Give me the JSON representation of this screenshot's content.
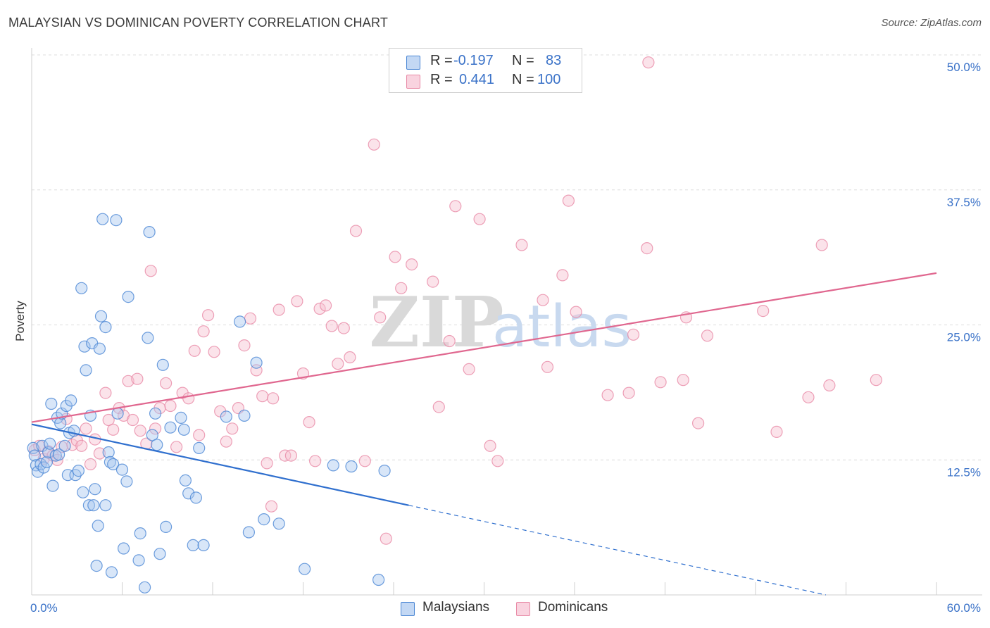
{
  "title": "MALAYSIAN VS DOMINICAN POVERTY CORRELATION CHART",
  "source": "Source: ZipAtlas.com",
  "watermark": {
    "zip": "ZIP",
    "atlas": "atlas"
  },
  "legend": {
    "rows": [
      {
        "r_label": "R =",
        "r_value": "-0.197",
        "n_label": "N =",
        "n_value": "83"
      },
      {
        "r_label": "R =",
        "r_value": "0.441",
        "n_label": "N =",
        "n_value": "100"
      }
    ]
  },
  "bottom_legend": {
    "malaysians": "Malaysians",
    "dominicans": "Dominicans"
  },
  "colors": {
    "blue": "#4a86d4",
    "blue_fill": "#a9c8f0",
    "blue_line": "#2f6fce",
    "pink": "#e88aa6",
    "pink_fill": "#f6c1d1",
    "pink_line": "#e0678f",
    "axis_label": "#3a72c8"
  },
  "chart_data": {
    "type": "scatter",
    "xlabel": "",
    "ylabel": "Poverty",
    "xlim": [
      0,
      60
    ],
    "ylim": [
      0,
      50
    ],
    "x_tick_labels": [
      "0.0%",
      "60.0%"
    ],
    "y_tick_labels": [
      "12.5%",
      "25.0%",
      "37.5%",
      "50.0%"
    ],
    "y_ticks": [
      12.5,
      25,
      37.5,
      50
    ],
    "series": [
      {
        "name": "Malaysians",
        "trend": {
          "x0": 0,
          "y0": 15.8,
          "x1": 25,
          "y1": 8.3,
          "dashed_to_x": 60
        },
        "points": [
          [
            0.1,
            13.6
          ],
          [
            0.2,
            12.9
          ],
          [
            0.3,
            12.0
          ],
          [
            0.4,
            11.4
          ],
          [
            0.6,
            12.1
          ],
          [
            0.7,
            13.8
          ],
          [
            0.8,
            11.8
          ],
          [
            1.0,
            12.3
          ],
          [
            1.1,
            13.2
          ],
          [
            1.2,
            14.0
          ],
          [
            1.3,
            17.7
          ],
          [
            1.4,
            10.1
          ],
          [
            1.6,
            12.9
          ],
          [
            1.7,
            16.4
          ],
          [
            1.8,
            13.0
          ],
          [
            1.9,
            15.9
          ],
          [
            2.0,
            16.8
          ],
          [
            2.2,
            13.8
          ],
          [
            2.3,
            17.5
          ],
          [
            2.4,
            11.1
          ],
          [
            2.5,
            15.0
          ],
          [
            2.6,
            18.0
          ],
          [
            2.8,
            15.2
          ],
          [
            2.9,
            11.1
          ],
          [
            3.1,
            11.5
          ],
          [
            3.3,
            28.4
          ],
          [
            3.4,
            9.5
          ],
          [
            3.5,
            23.0
          ],
          [
            3.6,
            20.8
          ],
          [
            3.8,
            8.3
          ],
          [
            3.9,
            16.6
          ],
          [
            4.0,
            23.3
          ],
          [
            4.1,
            8.3
          ],
          [
            4.2,
            9.8
          ],
          [
            4.3,
            2.7
          ],
          [
            4.4,
            6.4
          ],
          [
            4.5,
            22.8
          ],
          [
            4.6,
            25.8
          ],
          [
            4.7,
            34.8
          ],
          [
            4.9,
            24.8
          ],
          [
            4.9,
            8.3
          ],
          [
            5.1,
            13.2
          ],
          [
            5.2,
            12.3
          ],
          [
            5.3,
            2.1
          ],
          [
            5.4,
            12.1
          ],
          [
            5.6,
            34.7
          ],
          [
            5.7,
            16.8
          ],
          [
            6.0,
            11.6
          ],
          [
            6.1,
            4.3
          ],
          [
            6.3,
            10.5
          ],
          [
            6.4,
            27.6
          ],
          [
            7.1,
            3.2
          ],
          [
            7.2,
            5.7
          ],
          [
            7.5,
            0.7
          ],
          [
            7.7,
            23.8
          ],
          [
            7.8,
            33.6
          ],
          [
            8.0,
            14.8
          ],
          [
            8.2,
            16.8
          ],
          [
            8.3,
            13.9
          ],
          [
            8.5,
            3.8
          ],
          [
            8.7,
            21.3
          ],
          [
            8.9,
            6.3
          ],
          [
            9.2,
            15.5
          ],
          [
            9.9,
            16.4
          ],
          [
            10.1,
            15.3
          ],
          [
            10.2,
            10.6
          ],
          [
            10.4,
            9.4
          ],
          [
            10.7,
            4.6
          ],
          [
            10.9,
            9.0
          ],
          [
            11.1,
            13.6
          ],
          [
            11.4,
            4.6
          ],
          [
            12.9,
            16.5
          ],
          [
            13.8,
            25.3
          ],
          [
            14.1,
            16.6
          ],
          [
            14.4,
            5.8
          ],
          [
            14.9,
            21.5
          ],
          [
            15.4,
            7.0
          ],
          [
            16.4,
            6.6
          ],
          [
            18.1,
            2.4
          ],
          [
            20.0,
            12.0
          ],
          [
            21.2,
            11.9
          ],
          [
            23.0,
            1.4
          ],
          [
            23.4,
            11.5
          ]
        ]
      },
      {
        "name": "Dominicans",
        "trend": {
          "x0": 0,
          "y0": 16.0,
          "x1": 60,
          "y1": 29.8
        },
        "points": [
          [
            0.2,
            13.4
          ],
          [
            0.5,
            13.8
          ],
          [
            0.8,
            12.6
          ],
          [
            1.1,
            13.3
          ],
          [
            1.4,
            12.9
          ],
          [
            1.7,
            12.5
          ],
          [
            2.0,
            13.7
          ],
          [
            2.3,
            16.3
          ],
          [
            2.7,
            13.9
          ],
          [
            3.0,
            14.3
          ],
          [
            3.3,
            13.8
          ],
          [
            3.6,
            15.4
          ],
          [
            3.9,
            12.1
          ],
          [
            4.2,
            14.4
          ],
          [
            4.5,
            13.1
          ],
          [
            4.9,
            18.7
          ],
          [
            5.1,
            16.2
          ],
          [
            5.4,
            15.3
          ],
          [
            5.8,
            17.3
          ],
          [
            6.1,
            16.6
          ],
          [
            6.4,
            19.8
          ],
          [
            6.7,
            16.2
          ],
          [
            7.0,
            20.0
          ],
          [
            7.2,
            15.2
          ],
          [
            7.6,
            14.0
          ],
          [
            7.9,
            30.0
          ],
          [
            8.2,
            15.4
          ],
          [
            8.5,
            17.3
          ],
          [
            8.9,
            19.6
          ],
          [
            9.2,
            17.5
          ],
          [
            9.6,
            13.7
          ],
          [
            10.0,
            18.7
          ],
          [
            10.4,
            18.2
          ],
          [
            10.8,
            22.6
          ],
          [
            11.1,
            14.8
          ],
          [
            11.4,
            24.4
          ],
          [
            11.7,
            25.9
          ],
          [
            12.1,
            22.5
          ],
          [
            12.5,
            17.0
          ],
          [
            12.9,
            14.2
          ],
          [
            13.3,
            15.4
          ],
          [
            13.7,
            17.3
          ],
          [
            14.1,
            23.1
          ],
          [
            14.5,
            25.6
          ],
          [
            14.9,
            20.8
          ],
          [
            15.3,
            18.4
          ],
          [
            15.6,
            12.2
          ],
          [
            16.0,
            18.2
          ],
          [
            16.4,
            26.4
          ],
          [
            16.8,
            12.9
          ],
          [
            17.2,
            12.9
          ],
          [
            17.6,
            27.2
          ],
          [
            18.0,
            20.5
          ],
          [
            18.4,
            16.0
          ],
          [
            18.8,
            12.4
          ],
          [
            19.1,
            26.5
          ],
          [
            19.5,
            26.8
          ],
          [
            19.9,
            24.9
          ],
          [
            20.3,
            21.4
          ],
          [
            20.7,
            24.7
          ],
          [
            21.1,
            22.0
          ],
          [
            21.5,
            33.7
          ],
          [
            22.1,
            12.4
          ],
          [
            22.7,
            41.7
          ],
          [
            23.1,
            25.7
          ],
          [
            23.5,
            5.2
          ],
          [
            24.1,
            31.3
          ],
          [
            24.5,
            28.4
          ],
          [
            25.2,
            30.6
          ],
          [
            26.6,
            29.0
          ],
          [
            27.0,
            17.4
          ],
          [
            27.7,
            23.5
          ],
          [
            28.1,
            36.0
          ],
          [
            29.0,
            20.9
          ],
          [
            29.7,
            34.8
          ],
          [
            30.4,
            13.8
          ],
          [
            30.9,
            12.4
          ],
          [
            32.5,
            32.4
          ],
          [
            33.9,
            27.3
          ],
          [
            34.2,
            21.1
          ],
          [
            35.2,
            29.6
          ],
          [
            35.6,
            36.5
          ],
          [
            36.1,
            26.2
          ],
          [
            38.2,
            18.5
          ],
          [
            39.6,
            18.7
          ],
          [
            39.9,
            24.1
          ],
          [
            40.8,
            32.1
          ],
          [
            40.9,
            49.3
          ],
          [
            41.7,
            19.7
          ],
          [
            43.2,
            19.9
          ],
          [
            43.4,
            25.7
          ],
          [
            44.2,
            15.9
          ],
          [
            44.8,
            24.0
          ],
          [
            48.5,
            26.3
          ],
          [
            49.4,
            15.1
          ],
          [
            51.5,
            18.3
          ],
          [
            52.4,
            32.4
          ],
          [
            52.9,
            19.4
          ],
          [
            56.0,
            19.9
          ],
          [
            15.9,
            8.2
          ]
        ]
      }
    ],
    "grid": true,
    "legend_position": "top-center"
  }
}
